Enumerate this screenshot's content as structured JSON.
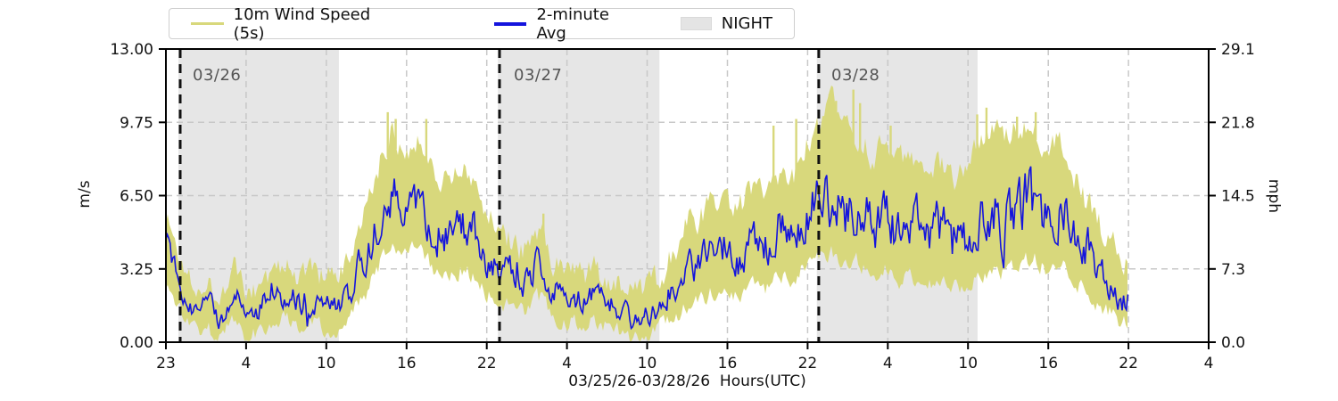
{
  "chart_data": {
    "type": "line",
    "xlabel": "03/25/26-03/28/26  Hours(UTC)",
    "ylabel_left": "m/s",
    "ylabel_right": "mph",
    "ylim_ms": [
      0,
      13
    ],
    "ylim_mph": [
      0,
      29.1
    ],
    "grid": true,
    "legend_position": "top",
    "y_ticks_ms": [
      "13.00",
      "9.75",
      "6.50",
      "3.25",
      "0.00"
    ],
    "y_tick_values_ms": [
      13,
      9.75,
      6.5,
      3.25,
      0
    ],
    "y_ticks_mph": [
      "29.1",
      "21.8",
      "14.5",
      "7.3",
      "0.0"
    ],
    "x_tick_labels": [
      "23",
      "4",
      "10",
      "16",
      "22",
      "4",
      "10",
      "16",
      "22",
      "4",
      "10",
      "16",
      "22",
      "4"
    ],
    "hours_axis_range": [
      -1.07,
      77.3
    ],
    "hours_data_range": [
      -1.07,
      71.3
    ],
    "night_spans_hours": [
      [
        -0.13,
        11.93
      ],
      [
        23.88,
        36.02
      ],
      [
        47.85,
        59.93
      ]
    ],
    "day_markers": [
      {
        "hour": 0,
        "label": "03/26"
      },
      {
        "hour": 24,
        "label": "03/27"
      },
      {
        "hour": 48,
        "label": "03/28"
      }
    ],
    "legend": {
      "items": [
        {
          "label": "10m Wind Speed (5s)",
          "swatch": "line",
          "color": "#d8d87c"
        },
        {
          "label": "2-minute Avg",
          "swatch": "line",
          "color": "#1414dd"
        },
        {
          "label": "NIGHT",
          "swatch": "patch",
          "color": "#e4e4e4"
        }
      ]
    },
    "colors": {
      "wind_5s": "#d8d87c",
      "avg_2min": "#1414dd",
      "night_fill": "#e6e6e6",
      "gridline": "#c8c8c8",
      "day_line": "#111111",
      "date_text": "#555555",
      "spine": "#000000"
    },
    "series": [
      {
        "name": "10m Wind Speed (5s)",
        "role": "envelope",
        "hours": [
          -1,
          0,
          1,
          2,
          3,
          4,
          5,
          6,
          7,
          8,
          9,
          10,
          11,
          12,
          13,
          14,
          15,
          16,
          17,
          18,
          19,
          20,
          21,
          22,
          23,
          24,
          25,
          26,
          27,
          28,
          29,
          30,
          31,
          32,
          33,
          34,
          35,
          36,
          37,
          38,
          39,
          40,
          41,
          42,
          43,
          44,
          45,
          46,
          47,
          48,
          49,
          50,
          51,
          52,
          53,
          54,
          55,
          56,
          57,
          58,
          59,
          60,
          61,
          62,
          63,
          64,
          65,
          66,
          67,
          68,
          69,
          70,
          71
        ],
        "hi": [
          5.6,
          3.6,
          2.8,
          2.6,
          2.2,
          3.4,
          1.9,
          2.7,
          3.1,
          3.3,
          2.9,
          3.3,
          2.7,
          2.9,
          4.0,
          5.8,
          8.0,
          9.3,
          8.6,
          9.0,
          7.8,
          7.2,
          7.6,
          7.2,
          5.8,
          4.9,
          4.4,
          4.0,
          5.2,
          3.7,
          3.2,
          2.9,
          3.2,
          2.8,
          2.6,
          2.1,
          2.3,
          2.9,
          3.9,
          5.3,
          5.5,
          6.1,
          6.5,
          6.0,
          6.8,
          6.4,
          7.6,
          7.3,
          8.6,
          9.3,
          10.6,
          9.8,
          9.2,
          8.2,
          8.8,
          7.9,
          8.4,
          7.5,
          7.9,
          7.2,
          7.7,
          8.6,
          9.6,
          9.0,
          9.7,
          9.9,
          8.8,
          9.0,
          7.6,
          6.4,
          5.4,
          4.4,
          3.4
        ],
        "lo": [
          2.6,
          1.4,
          0.7,
          0.6,
          0.3,
          1.1,
          0.1,
          0.6,
          0.9,
          1.1,
          0.8,
          1.0,
          0.6,
          0.6,
          1.3,
          2.2,
          3.4,
          4.3,
          3.9,
          4.2,
          3.2,
          2.8,
          3.2,
          3.0,
          2.2,
          1.8,
          1.6,
          1.4,
          2.0,
          1.2,
          0.9,
          0.8,
          1.0,
          0.7,
          0.5,
          0.2,
          0.4,
          0.6,
          1.1,
          1.6,
          1.8,
          2.2,
          2.5,
          2.0,
          2.6,
          2.2,
          3.1,
          2.8,
          3.4,
          3.8,
          3.9,
          3.2,
          3.6,
          2.8,
          3.2,
          2.6,
          3.0,
          2.4,
          2.7,
          2.3,
          2.6,
          2.9,
          3.3,
          3.0,
          3.4,
          3.8,
          3.2,
          3.6,
          2.8,
          2.2,
          1.7,
          1.2,
          0.8
        ],
        "spikes": [
          {
            "hour": 15.6,
            "value": 10.2
          },
          {
            "hour": 16.2,
            "value": 9.9
          },
          {
            "hour": 18.5,
            "value": 9.9
          },
          {
            "hour": 27.3,
            "value": 5.7
          },
          {
            "hour": 44.6,
            "value": 9.6
          },
          {
            "hour": 46.3,
            "value": 9.9
          },
          {
            "hour": 48.8,
            "value": 11.0
          },
          {
            "hour": 49.3,
            "value": 10.7
          },
          {
            "hour": 50.6,
            "value": 11.2
          },
          {
            "hour": 51.1,
            "value": 10.6
          },
          {
            "hour": 53.4,
            "value": 9.6
          },
          {
            "hour": 59.9,
            "value": 10.1
          },
          {
            "hour": 60.6,
            "value": 10.4
          },
          {
            "hour": 62.9,
            "value": 10.0
          },
          {
            "hour": 64.3,
            "value": 10.2
          }
        ]
      },
      {
        "name": "2-minute Avg",
        "role": "average-line",
        "hours": [
          -1,
          0,
          1,
          2,
          3,
          4,
          5,
          6,
          7,
          8,
          9,
          10,
          11,
          12,
          13,
          14,
          15,
          16,
          17,
          18,
          19,
          20,
          21,
          22,
          23,
          24,
          25,
          26,
          27,
          28,
          29,
          30,
          31,
          32,
          33,
          34,
          35,
          36,
          37,
          38,
          39,
          40,
          41,
          42,
          43,
          44,
          45,
          46,
          47,
          48,
          49,
          50,
          51,
          52,
          53,
          54,
          55,
          56,
          57,
          58,
          59,
          60,
          61,
          62,
          63,
          64,
          65,
          66,
          67,
          68,
          69,
          70,
          71
        ],
        "avg": [
          4.8,
          2.6,
          1.7,
          1.5,
          1.1,
          2.3,
          0.9,
          1.6,
          2.0,
          2.2,
          1.8,
          2.1,
          1.6,
          1.7,
          2.6,
          3.9,
          5.6,
          6.8,
          6.2,
          6.6,
          5.4,
          4.8,
          5.3,
          5.0,
          3.9,
          3.3,
          3.0,
          2.7,
          3.6,
          2.4,
          2.0,
          1.8,
          2.1,
          1.7,
          1.5,
          1.1,
          1.3,
          1.7,
          2.4,
          3.3,
          3.6,
          4.1,
          4.5,
          3.9,
          4.7,
          4.2,
          5.4,
          5.0,
          5.8,
          6.3,
          6.4,
          5.6,
          6.2,
          5.1,
          5.7,
          4.9,
          5.4,
          4.6,
          5.0,
          4.4,
          4.8,
          5.2,
          5.8,
          5.3,
          6.0,
          6.4,
          5.7,
          6.2,
          5.1,
          4.3,
          3.6,
          2.8,
          2.0
        ]
      }
    ]
  }
}
